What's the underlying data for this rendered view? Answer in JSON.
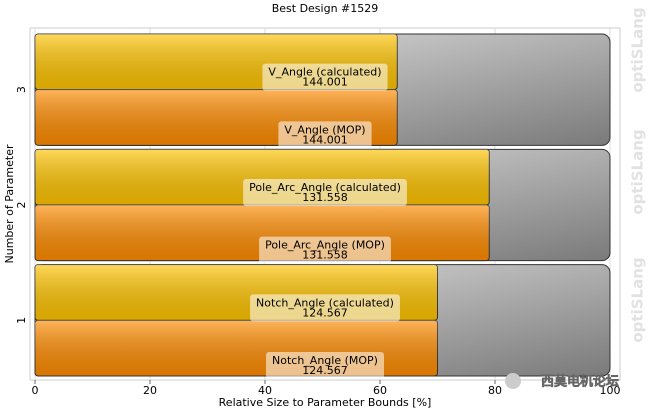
{
  "chart_data": {
    "type": "bar",
    "orientation": "horizontal",
    "title": "Best Design #1529",
    "xlabel": "Relative Size to Parameter Bounds [%]",
    "ylabel": "Number of Parameter",
    "xlim": [
      0,
      100
    ],
    "xticks": [
      0,
      20,
      40,
      60,
      80,
      100
    ],
    "grid": true,
    "parameters": [
      {
        "label": "1",
        "bars": [
          {
            "name": "Notch_Angle (calculated)",
            "value": 70,
            "parameter_value": 124.567,
            "color": "#ffc400"
          },
          {
            "name": "Notch_Angle (MOP)",
            "value": 70,
            "parameter_value": 124.567,
            "color": "#ff8c00"
          }
        ]
      },
      {
        "label": "2",
        "bars": [
          {
            "name": "Pole_Arc_Angle (calculated)",
            "value": 79,
            "parameter_value": 131.558,
            "color": "#ffc400"
          },
          {
            "name": "Pole_Arc_Angle (MOP)",
            "value": 79,
            "parameter_value": 131.558,
            "color": "#ff8c00"
          }
        ]
      },
      {
        "label": "3",
        "bars": [
          {
            "name": "V_Angle (calculated)",
            "value": 63,
            "parameter_value": 144.001,
            "color": "#ffc400"
          },
          {
            "name": "V_Angle (MOP)",
            "value": 63,
            "parameter_value": 144.001,
            "color": "#ff8c00"
          }
        ]
      }
    ],
    "watermark": "optiSLang",
    "logo_text": "西莫电机论坛"
  }
}
